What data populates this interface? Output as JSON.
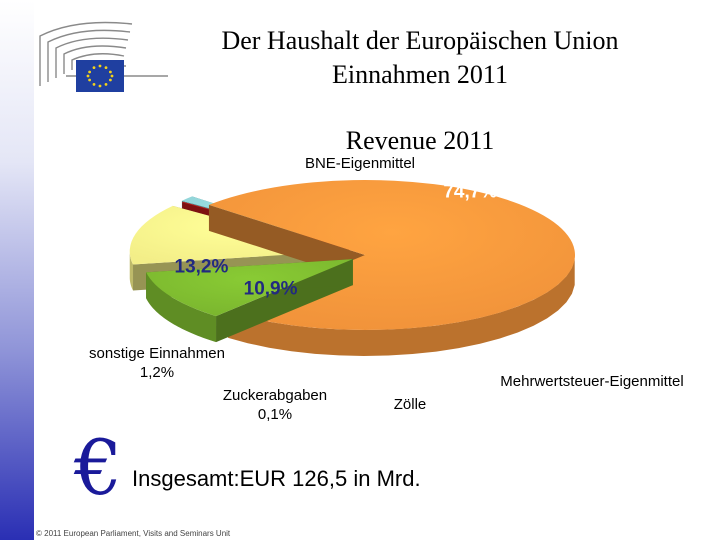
{
  "header": {
    "title_line1": "Der Haushalt der Europäischen Union",
    "title_line2": "Einnahmen 2011"
  },
  "chart_data": {
    "type": "pie",
    "title": "Revenue 2011",
    "slices": [
      {
        "label": "BNE-Eigenmittel",
        "value": 74.7,
        "display": "74,7%",
        "color": "#f0923a"
      },
      {
        "label": "Mehrwertsteuer-Eigenmittel",
        "value": 10.9,
        "display": "10,9%",
        "color": "#7ab52e"
      },
      {
        "label": "Zölle",
        "value": 13.2,
        "display": "13,2%",
        "color": "#f3ee88"
      },
      {
        "label": "Zuckerabgaben",
        "value": 0.1,
        "display": "0,1%",
        "color": "#cc1b1b"
      },
      {
        "label": "sonstige Einnahmen",
        "value": 1.2,
        "display": "1,2%",
        "color": "#8fd0d4"
      }
    ]
  },
  "total": {
    "symbol": "€",
    "text": "Insgesamt:EUR 126,5 in Mrd."
  },
  "footer": {
    "copyright": "© 2011 European Parliament, Visits and Seminars Unit"
  }
}
